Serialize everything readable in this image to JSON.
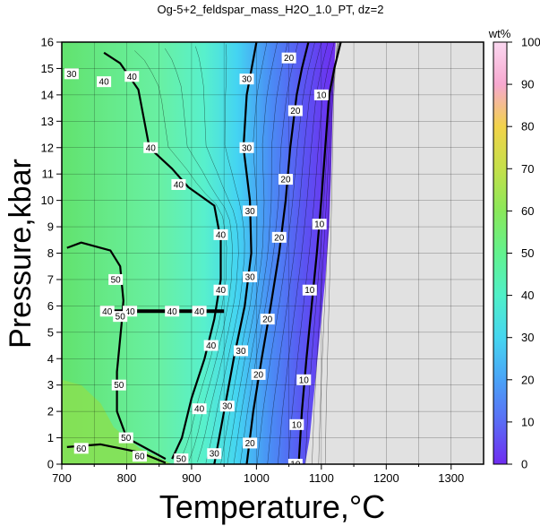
{
  "chart_data": {
    "type": "heatmap",
    "title": "Og-5+2_feldspar_mass_H2O_1.0_PT, dz=2",
    "xlabel": "Temperature,°C",
    "ylabel": "Pressure,kbar",
    "xlim": [
      700,
      1350
    ],
    "ylim": [
      0,
      16
    ],
    "x_ticks": [
      700,
      800,
      900,
      1000,
      1100,
      1200,
      1300
    ],
    "y_ticks": [
      0,
      1,
      2,
      3,
      4,
      5,
      6,
      7,
      8,
      9,
      10,
      11,
      12,
      13,
      14,
      15,
      16
    ],
    "grid": true,
    "colorbar": {
      "label": "wt%",
      "range": [
        0,
        100
      ],
      "ticks": [
        0,
        10,
        20,
        30,
        40,
        50,
        60,
        70,
        80,
        90,
        100
      ],
      "colors": [
        "#6f2cf0",
        "#5b6cf5",
        "#4aa3f7",
        "#46d6f0",
        "#50f0c8",
        "#62f28e",
        "#8ae85a",
        "#c5e04a",
        "#f2d34a",
        "#f7a8d0",
        "#fbd8f0"
      ]
    },
    "no_data_color": "#e1e1e1",
    "major_contours": [
      {
        "value": 10,
        "points": [
          [
            1130,
            16
          ],
          [
            1120,
            15
          ],
          [
            1112,
            14
          ],
          [
            1106,
            12
          ],
          [
            1100,
            10
          ],
          [
            1093,
            8
          ],
          [
            1085,
            6
          ],
          [
            1077,
            4
          ],
          [
            1070,
            2
          ],
          [
            1065,
            0
          ]
        ]
      },
      {
        "value": 20,
        "points": [
          [
            1080,
            16
          ],
          [
            1070,
            15
          ],
          [
            1062,
            14
          ],
          [
            1052,
            12
          ],
          [
            1045,
            10
          ],
          [
            1035,
            8
          ],
          [
            1022,
            6
          ],
          [
            1008,
            4
          ],
          [
            995,
            2
          ],
          [
            985,
            0
          ]
        ]
      },
      {
        "value": 30,
        "points": [
          [
            1000,
            16
          ],
          [
            985,
            14
          ],
          [
            980,
            12
          ],
          [
            990,
            10
          ],
          [
            992,
            8
          ],
          [
            982,
            6
          ],
          [
            965,
            4
          ],
          [
            950,
            2
          ],
          [
            935,
            0
          ]
        ]
      },
      {
        "value": 40,
        "points": [
          [
            765,
            15.6
          ],
          [
            790,
            15.2
          ],
          [
            818,
            14.2
          ],
          [
            835,
            12
          ],
          [
            870,
            11.2
          ],
          [
            895,
            10.5
          ],
          [
            935,
            9.8
          ],
          [
            945,
            8.5
          ],
          [
            945,
            7
          ],
          [
            935,
            5.5
          ],
          [
            920,
            4
          ],
          [
            900,
            2.5
          ],
          [
            885,
            1
          ],
          [
            870,
            0.2
          ]
        ]
      },
      {
        "value": 50,
        "points": [
          [
            708,
            8.2
          ],
          [
            730,
            8.4
          ],
          [
            775,
            8.1
          ],
          [
            790,
            7.5
          ],
          [
            795,
            6.2
          ],
          [
            792,
            5.3
          ],
          [
            785,
            3.5
          ],
          [
            785,
            2
          ],
          [
            800,
            1
          ],
          [
            860,
            0.2
          ]
        ]
      },
      {
        "value": 60,
        "points": [
          [
            708,
            0.65
          ],
          [
            760,
            0.75
          ],
          [
            820,
            0.45
          ],
          [
            860,
            0.05
          ]
        ]
      }
    ],
    "contour_labels": [
      {
        "text": "10",
        "x": 1100,
        "y": 14.0
      },
      {
        "text": "10",
        "x": 1097,
        "y": 9.1
      },
      {
        "text": "10",
        "x": 1082,
        "y": 6.6
      },
      {
        "text": "10",
        "x": 1073,
        "y": 3.2
      },
      {
        "text": "10",
        "x": 1062,
        "y": 1.5
      },
      {
        "text": "10",
        "x": 1060,
        "y": 0.0
      },
      {
        "text": "20",
        "x": 1050,
        "y": 15.4
      },
      {
        "text": "20",
        "x": 1060,
        "y": 13.4
      },
      {
        "text": "20",
        "x": 1045,
        "y": 10.8
      },
      {
        "text": "20",
        "x": 1035,
        "y": 8.6
      },
      {
        "text": "20",
        "x": 1017,
        "y": 5.5
      },
      {
        "text": "20",
        "x": 1003,
        "y": 3.4
      },
      {
        "text": "20",
        "x": 990,
        "y": 0.8
      },
      {
        "text": "30",
        "x": 985,
        "y": 14.6
      },
      {
        "text": "30",
        "x": 985,
        "y": 12.0
      },
      {
        "text": "30",
        "x": 990,
        "y": 9.6
      },
      {
        "text": "30",
        "x": 990,
        "y": 7.1
      },
      {
        "text": "30",
        "x": 976,
        "y": 4.3
      },
      {
        "text": "30",
        "x": 955,
        "y": 2.2
      },
      {
        "text": "30",
        "x": 935,
        "y": 0.4
      },
      {
        "text": "30",
        "x": 715,
        "y": 14.8
      },
      {
        "text": "40",
        "x": 765,
        "y": 14.5
      },
      {
        "text": "40",
        "x": 808,
        "y": 14.7
      },
      {
        "text": "40",
        "x": 837,
        "y": 12.0
      },
      {
        "text": "40",
        "x": 880,
        "y": 10.6
      },
      {
        "text": "40",
        "x": 945,
        "y": 8.7
      },
      {
        "text": "40",
        "x": 945,
        "y": 6.6
      },
      {
        "text": "40",
        "x": 930,
        "y": 4.5
      },
      {
        "text": "40",
        "x": 912,
        "y": 2.1
      },
      {
        "text": "40",
        "x": 770,
        "y": 5.8
      },
      {
        "text": "40",
        "x": 805,
        "y": 5.8
      },
      {
        "text": "40",
        "x": 870,
        "y": 5.8
      },
      {
        "text": "40",
        "x": 912,
        "y": 5.8
      },
      {
        "text": "50",
        "x": 783,
        "y": 7.0
      },
      {
        "text": "50",
        "x": 790,
        "y": 5.6
      },
      {
        "text": "50",
        "x": 788,
        "y": 3.0
      },
      {
        "text": "50",
        "x": 799,
        "y": 1.0
      },
      {
        "text": "50",
        "x": 884,
        "y": 0.2
      },
      {
        "text": "60",
        "x": 730,
        "y": 0.6
      },
      {
        "text": "60",
        "x": 820,
        "y": 0.3
      }
    ]
  }
}
